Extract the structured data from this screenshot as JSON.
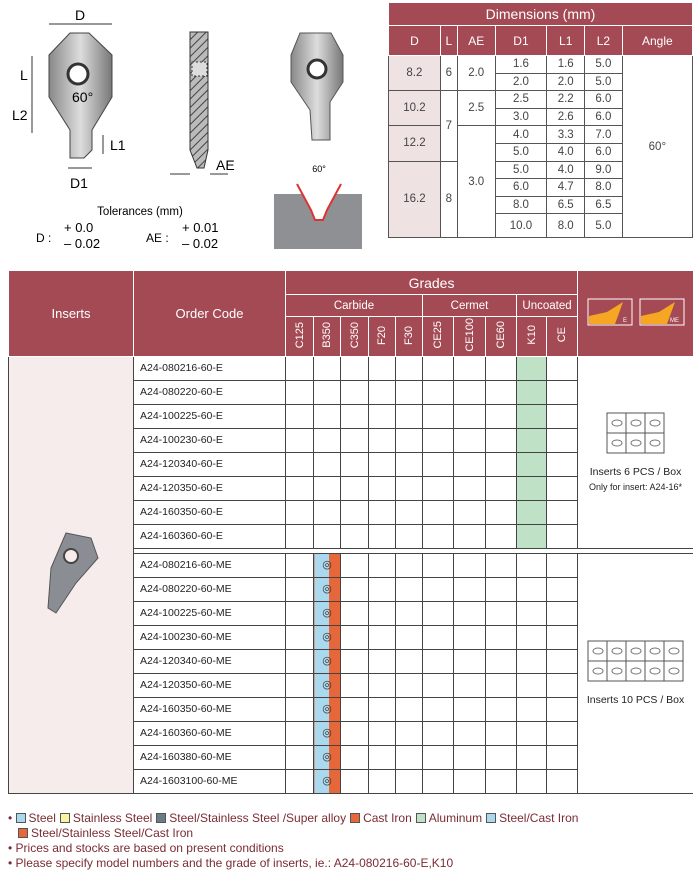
{
  "drawing": {
    "labels": {
      "D": "D",
      "L": "L",
      "L2": "L2",
      "L1": "L1",
      "D1": "D1",
      "angle": "60°",
      "AE": "AE",
      "groove_angle": "60°"
    },
    "tolerances": {
      "title": "Tolerances (mm)",
      "D_label": "D :",
      "D_plus": "+ 0.0",
      "D_minus": "– 0.02",
      "AE_label": "AE :",
      "AE_plus": "+ 0.01",
      "AE_minus": "– 0.02"
    }
  },
  "dimensions": {
    "title": "Dimensions (mm)",
    "headers": [
      "D",
      "L",
      "AE",
      "D1",
      "L1",
      "L2",
      "Angle"
    ],
    "D": [
      "8.2",
      "10.2",
      "12.2",
      "16.2"
    ],
    "L": [
      "6",
      "7",
      "8"
    ],
    "AE": [
      "2.0",
      "2.5",
      "3.0"
    ],
    "angle": "60°",
    "rows": [
      [
        "1.6",
        "1.6",
        "5.0"
      ],
      [
        "2.0",
        "2.0",
        "5.0"
      ],
      [
        "2.5",
        "2.2",
        "6.0"
      ],
      [
        "3.0",
        "2.6",
        "6.0"
      ],
      [
        "4.0",
        "3.3",
        "7.0"
      ],
      [
        "5.0",
        "4.0",
        "6.0"
      ],
      [
        "5.0",
        "4.0",
        "9.0"
      ],
      [
        "6.0",
        "4.7",
        "8.0"
      ],
      [
        "8.0",
        "6.5",
        "6.5"
      ],
      [
        "10.0",
        "8.0",
        "5.0"
      ]
    ]
  },
  "grades_table": {
    "inserts_header": "Inserts",
    "order_code_header": "Order Code",
    "grades_header": "Grades",
    "groups": [
      {
        "label": "Carbide",
        "span": 5
      },
      {
        "label": "Cermet",
        "span": 3
      },
      {
        "label": "Uncoated",
        "span": 2
      }
    ],
    "grade_cols": [
      "C125",
      "B350",
      "C350",
      "F20",
      "F30",
      "CE25",
      "CE100",
      "CE60",
      "K10",
      "CE"
    ],
    "chipbreakers": [
      "E",
      "ME"
    ],
    "e_rows": [
      "A24-080216-60-E",
      "A24-080220-60-E",
      "A24-100225-60-E",
      "A24-100230-60-E",
      "A24-120340-60-E",
      "A24-120350-60-E",
      "A24-160350-60-E",
      "A24-160360-60-E"
    ],
    "e_grade": "K10",
    "me_rows": [
      "A24-080216-60-ME",
      "A24-080220-60-ME",
      "A24-100225-60-ME",
      "A24-100230-60-ME",
      "A24-120340-60-ME",
      "A24-120350-60-ME",
      "A24-160350-60-ME",
      "A24-160360-60-ME",
      "A24-160380-60-ME",
      "A24-1603100-60-ME"
    ],
    "me_grade": "B350",
    "me_symbol": "◎",
    "box_e": {
      "label": "Inserts 6 PCS / Box",
      "note": "Only for insert: A24-16*"
    },
    "box_me": {
      "label": "Inserts 10 PCS / Box"
    }
  },
  "legend": {
    "items": [
      {
        "label": "Steel",
        "color": "#a9d8ef"
      },
      {
        "label": "Stainless Steel",
        "color": "#fbf3a4"
      },
      {
        "label": "Steel/Stainless Steel /Super alloy",
        "color": "#6d7b86"
      },
      {
        "label": "Cast Iron",
        "color": "#e6673a"
      },
      {
        "label": "Aluminum",
        "color": "#bfe1c6"
      },
      {
        "label": "Steel/Cast Iron",
        "color": "#a9d8ef"
      },
      {
        "label": "Steel/Stainless Steel/Cast Iron",
        "color": "#e6673a"
      }
    ],
    "notes": [
      "Prices and stocks are based on present conditions",
      "Please specify model numbers and the grade of inserts, ie.: A24-080216-60-E,K10"
    ]
  },
  "colors": {
    "header": "#a44a54",
    "k10": "#bfe1c6",
    "steel": "#a9d8ef",
    "cast_iron": "#e6673a"
  }
}
